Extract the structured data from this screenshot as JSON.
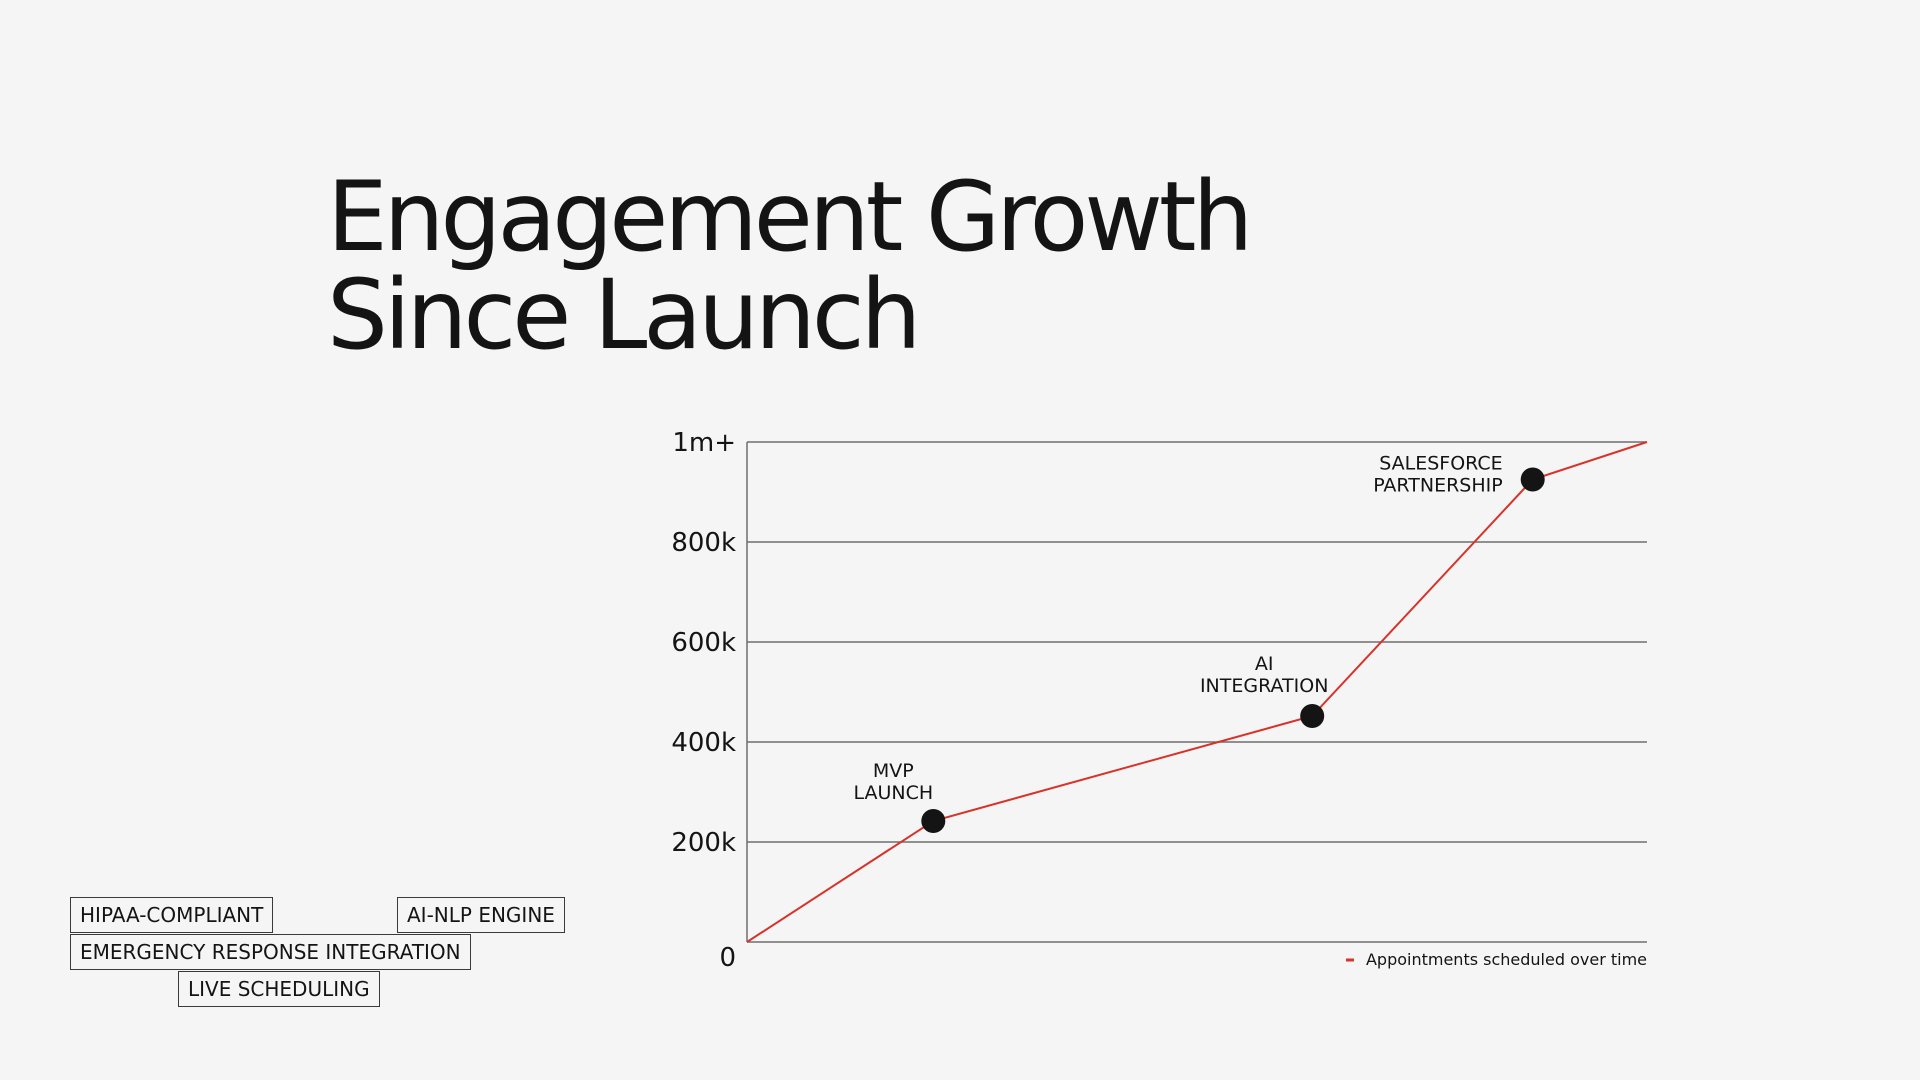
{
  "page": {
    "title_lines": [
      "Engagement Growth",
      "Since Launch"
    ]
  },
  "tags": [
    {
      "label": "HIPAA-COMPLIANT"
    },
    {
      "label": "AI-NLP ENGINE"
    },
    {
      "label": "EMERGENCY RESPONSE INTEGRATION"
    },
    {
      "label": "LIVE SCHEDULING"
    }
  ],
  "chart_data": {
    "type": "line",
    "ylim": [
      0,
      1000000
    ],
    "xlim": [
      0,
      1
    ],
    "y_ticks": [
      {
        "value": 0,
        "label": "0"
      },
      {
        "value": 200000,
        "label": "200k"
      },
      {
        "value": 400000,
        "label": "400k"
      },
      {
        "value": 600000,
        "label": "600k"
      },
      {
        "value": 800000,
        "label": "800k"
      },
      {
        "value": 1000000,
        "label": "1m+"
      }
    ],
    "grid": true,
    "legend": {
      "position": "bottom-right"
    },
    "colors": {
      "line": "#d7332b",
      "marker": "#141414",
      "grid": "#6e6e6e"
    },
    "series": [
      {
        "name": "Appointments scheduled over time",
        "x": [
          0,
          0.207,
          0.628,
          0.873,
          1
        ],
        "y": [
          0,
          242000,
          452000,
          925000,
          1000000
        ]
      }
    ],
    "milestones": [
      {
        "x": 0.207,
        "y": 242000,
        "label_lines": [
          "MVP",
          "LAUNCH"
        ]
      },
      {
        "x": 0.628,
        "y": 452000,
        "label_lines": [
          "AI",
          "INTEGRATION"
        ]
      },
      {
        "x": 0.873,
        "y": 925000,
        "label_lines": [
          "SALESFORCE",
          "PARTNERSHIP"
        ]
      }
    ]
  }
}
